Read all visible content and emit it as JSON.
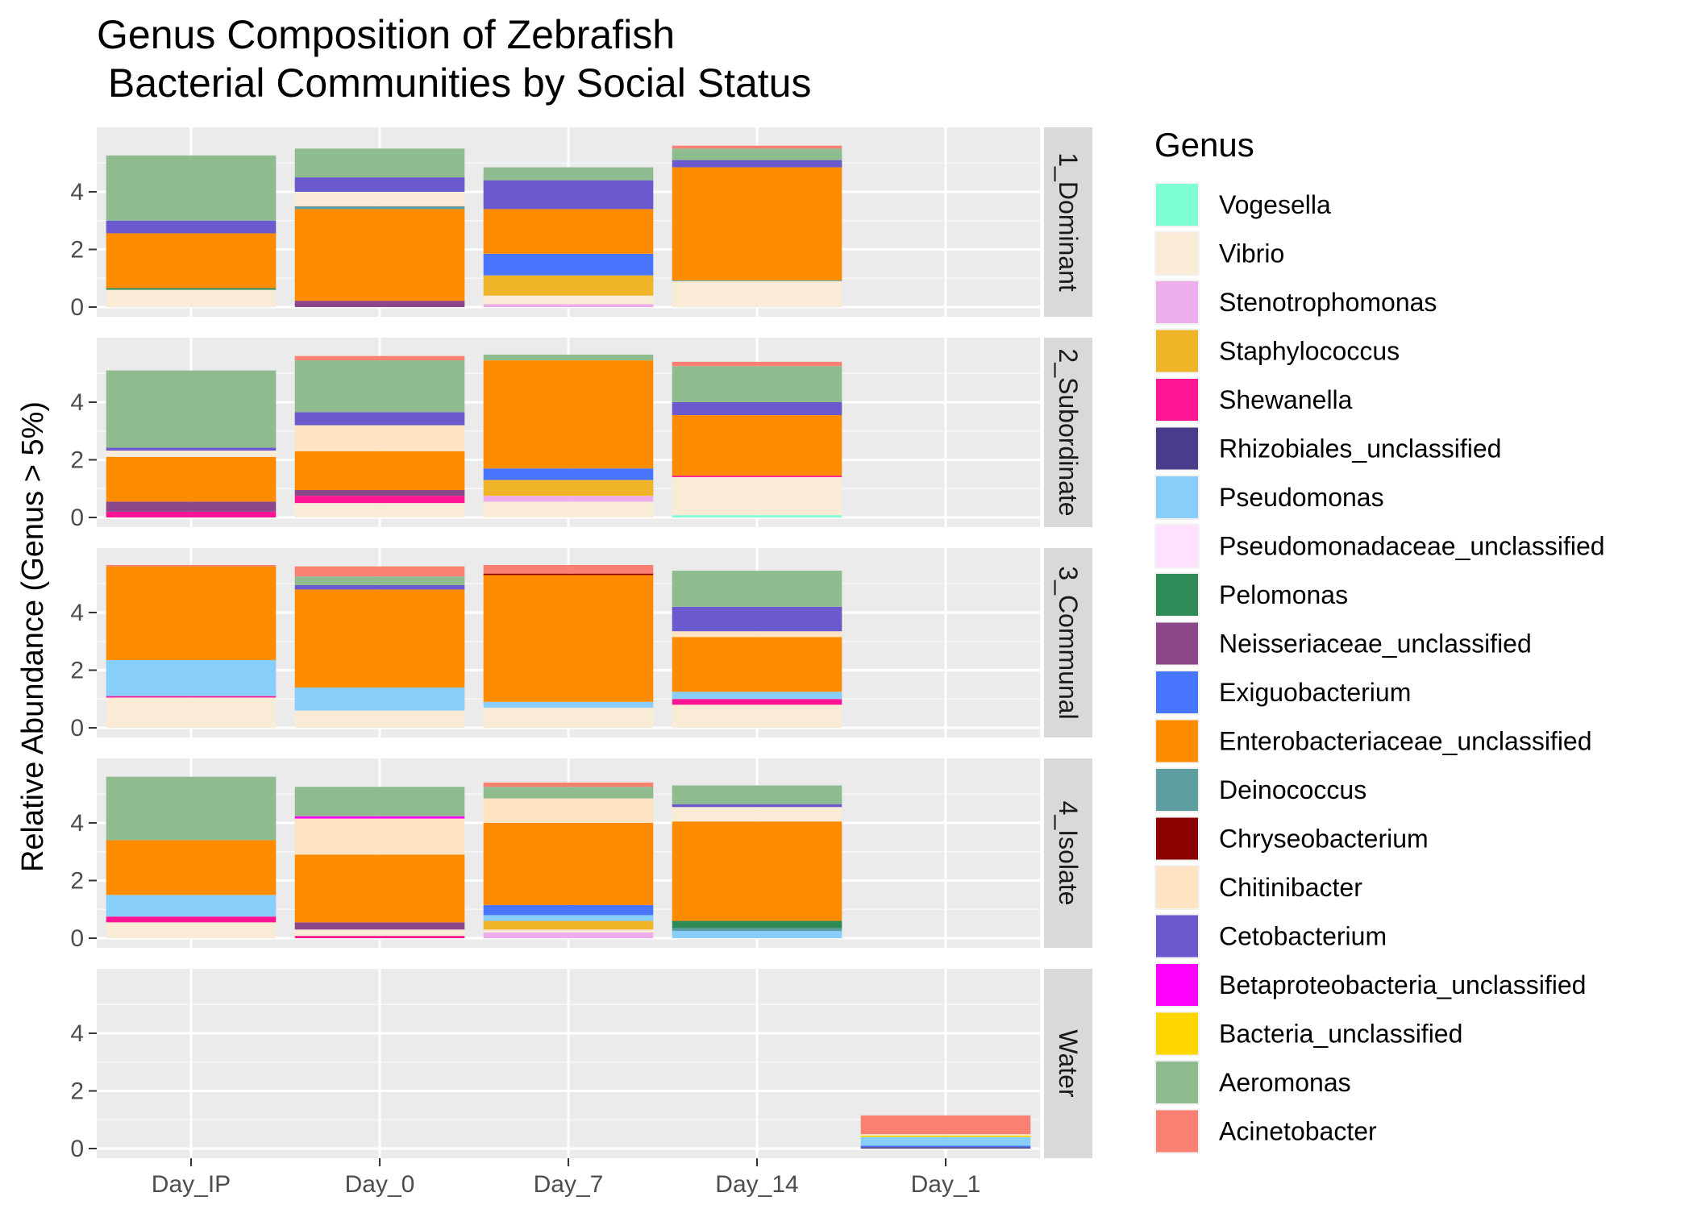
{
  "chart_data": {
    "type": "bar",
    "stacked": true,
    "faceted": true,
    "title_lines": [
      "Genus Composition of Zebrafish",
      " Bacterial Communities by Social Status"
    ],
    "xlabel": "",
    "ylabel": "Relative Abundance (Genus > 5%)",
    "ylim": [
      0,
      5.9
    ],
    "y_ticks": [
      0,
      2,
      4
    ],
    "categories": [
      "Day_IP",
      "Day_0",
      "Day_7",
      "Day_14",
      "Day_1"
    ],
    "facets": [
      "1_Dominant",
      "2_Subordinate",
      "3_Communal",
      "4_Isolate",
      "Water"
    ],
    "legend_title": "Genus",
    "legend_position": "right",
    "grid": true,
    "genera": [
      {
        "name": "Vogesella",
        "color": "#7FFFD4"
      },
      {
        "name": "Vibrio",
        "color": "#FAEBD7"
      },
      {
        "name": "Stenotrophomonas",
        "color": "#EEAEEE"
      },
      {
        "name": "Staphylococcus",
        "color": "#F0B428"
      },
      {
        "name": "Shewanella",
        "color": "#FF1493"
      },
      {
        "name": "Rhizobiales_unclassified",
        "color": "#483D8B"
      },
      {
        "name": "Pseudomonas",
        "color": "#87CEFA"
      },
      {
        "name": "Pseudomonadaceae_unclassified",
        "color": "#FFE1FF"
      },
      {
        "name": "Pelomonas",
        "color": "#2E8B57"
      },
      {
        "name": "Neisseriaceae_unclassified",
        "color": "#8B4789"
      },
      {
        "name": "Exiguobacterium",
        "color": "#4876FF"
      },
      {
        "name": "Enterobacteriaceae_unclassified",
        "color": "#FF8C00"
      },
      {
        "name": "Deinococcus",
        "color": "#5F9EA0"
      },
      {
        "name": "Chryseobacterium",
        "color": "#8B0000"
      },
      {
        "name": "Chitinibacter",
        "color": "#FFE4C4"
      },
      {
        "name": "Cetobacterium",
        "color": "#6A5ACD"
      },
      {
        "name": "Betaproteobacteria_unclassified",
        "color": "#FF00FF"
      },
      {
        "name": "Bacteria_unclassified",
        "color": "#FFD700"
      },
      {
        "name": "Aeromonas",
        "color": "#8FBC8F"
      },
      {
        "name": "Acinetobacter",
        "color": "#FA8072"
      }
    ],
    "stacks": [
      {
        "facet": "1_Dominant",
        "category": "Day_IP",
        "segments": [
          [
            "Vibrio",
            0.6
          ],
          [
            "Pelomonas",
            0.06
          ],
          [
            "Enterobacteriaceae_unclassified",
            1.9
          ],
          [
            "Cetobacterium",
            0.44
          ],
          [
            "Aeromonas",
            2.26
          ]
        ]
      },
      {
        "facet": "1_Dominant",
        "category": "Day_0",
        "segments": [
          [
            "Neisseriaceae_unclassified",
            0.22
          ],
          [
            "Enterobacteriaceae_unclassified",
            3.18
          ],
          [
            "Deinococcus",
            0.1
          ],
          [
            "Vibrio",
            0.5
          ],
          [
            "Cetobacterium",
            0.5
          ],
          [
            "Aeromonas",
            1.0
          ]
        ]
      },
      {
        "facet": "1_Dominant",
        "category": "Day_7",
        "segments": [
          [
            "Stenotrophomonas",
            0.1
          ],
          [
            "Vibrio",
            0.3
          ],
          [
            "Staphylococcus",
            0.7
          ],
          [
            "Exiguobacterium",
            0.75
          ],
          [
            "Enterobacteriaceae_unclassified",
            1.55
          ],
          [
            "Cetobacterium",
            1.0
          ],
          [
            "Aeromonas",
            0.45
          ]
        ]
      },
      {
        "facet": "1_Dominant",
        "category": "Day_14",
        "segments": [
          [
            "Vibrio",
            0.9
          ],
          [
            "Deinococcus",
            0.03
          ],
          [
            "Enterobacteriaceae_unclassified",
            3.92
          ],
          [
            "Cetobacterium",
            0.25
          ],
          [
            "Aeromonas",
            0.4
          ],
          [
            "Acinetobacter",
            0.1
          ]
        ]
      },
      {
        "facet": "2_Subordinate",
        "category": "Day_IP",
        "segments": [
          [
            "Shewanella",
            0.2
          ],
          [
            "Neisseriaceae_unclassified",
            0.35
          ],
          [
            "Enterobacteriaceae_unclassified",
            1.55
          ],
          [
            "Vibrio",
            0.22
          ],
          [
            "Cetobacterium",
            0.1
          ],
          [
            "Aeromonas",
            2.68
          ]
        ]
      },
      {
        "facet": "2_Subordinate",
        "category": "Day_0",
        "segments": [
          [
            "Vibrio",
            0.5
          ],
          [
            "Shewanella",
            0.25
          ],
          [
            "Neisseriaceae_unclassified",
            0.2
          ],
          [
            "Enterobacteriaceae_unclassified",
            1.35
          ],
          [
            "Chitinibacter",
            0.9
          ],
          [
            "Cetobacterium",
            0.45
          ],
          [
            "Aeromonas",
            1.8
          ],
          [
            "Acinetobacter",
            0.15
          ]
        ]
      },
      {
        "facet": "2_Subordinate",
        "category": "Day_7",
        "segments": [
          [
            "Vibrio",
            0.55
          ],
          [
            "Stenotrophomonas",
            0.2
          ],
          [
            "Staphylococcus",
            0.55
          ],
          [
            "Exiguobacterium",
            0.4
          ],
          [
            "Enterobacteriaceae_unclassified",
            3.75
          ],
          [
            "Aeromonas",
            0.2
          ]
        ]
      },
      {
        "facet": "2_Subordinate",
        "category": "Day_14",
        "segments": [
          [
            "Vogesella",
            0.08
          ],
          [
            "Vibrio",
            1.32
          ],
          [
            "Shewanella",
            0.05
          ],
          [
            "Enterobacteriaceae_unclassified",
            2.1
          ],
          [
            "Cetobacterium",
            0.45
          ],
          [
            "Aeromonas",
            1.25
          ],
          [
            "Acinetobacter",
            0.15
          ]
        ]
      },
      {
        "facet": "3_Communal",
        "category": "Day_IP",
        "segments": [
          [
            "Vibrio",
            1.05
          ],
          [
            "Shewanella",
            0.05
          ],
          [
            "Pseudomonas",
            1.25
          ],
          [
            "Enterobacteriaceae_unclassified",
            3.25
          ],
          [
            "Acinetobacter",
            0.05
          ]
        ]
      },
      {
        "facet": "3_Communal",
        "category": "Day_0",
        "segments": [
          [
            "Vibrio",
            0.6
          ],
          [
            "Pseudomonas",
            0.8
          ],
          [
            "Enterobacteriaceae_unclassified",
            3.4
          ],
          [
            "Cetobacterium",
            0.15
          ],
          [
            "Aeromonas",
            0.3
          ],
          [
            "Acinetobacter",
            0.35
          ]
        ]
      },
      {
        "facet": "3_Communal",
        "category": "Day_7",
        "segments": [
          [
            "Vibrio",
            0.7
          ],
          [
            "Pseudomonas",
            0.2
          ],
          [
            "Enterobacteriaceae_unclassified",
            4.4
          ],
          [
            "Chryseobacterium",
            0.05
          ],
          [
            "Acinetobacter",
            0.3
          ]
        ]
      },
      {
        "facet": "3_Communal",
        "category": "Day_14",
        "segments": [
          [
            "Vibrio",
            0.8
          ],
          [
            "Shewanella",
            0.2
          ],
          [
            "Pseudomonas",
            0.25
          ],
          [
            "Enterobacteriaceae_unclassified",
            1.9
          ],
          [
            "Chitinibacter",
            0.2
          ],
          [
            "Cetobacterium",
            0.85
          ],
          [
            "Aeromonas",
            1.25
          ]
        ]
      },
      {
        "facet": "4_Isolate",
        "category": "Day_IP",
        "segments": [
          [
            "Vibrio",
            0.55
          ],
          [
            "Shewanella",
            0.2
          ],
          [
            "Pseudomonas",
            0.75
          ],
          [
            "Enterobacteriaceae_unclassified",
            1.9
          ],
          [
            "Aeromonas",
            2.2
          ]
        ]
      },
      {
        "facet": "4_Isolate",
        "category": "Day_0",
        "segments": [
          [
            "Shewanella",
            0.08
          ],
          [
            "Vibrio",
            0.22
          ],
          [
            "Neisseriaceae_unclassified",
            0.25
          ],
          [
            "Enterobacteriaceae_unclassified",
            2.35
          ],
          [
            "Chitinibacter",
            1.25
          ],
          [
            "Betaproteobacteria_unclassified",
            0.08
          ],
          [
            "Aeromonas",
            1.02
          ]
        ]
      },
      {
        "facet": "4_Isolate",
        "category": "Day_7",
        "segments": [
          [
            "Stenotrophomonas",
            0.2
          ],
          [
            "Vibrio",
            0.1
          ],
          [
            "Staphylococcus",
            0.3
          ],
          [
            "Pseudomonas",
            0.2
          ],
          [
            "Exiguobacterium",
            0.35
          ],
          [
            "Enterobacteriaceae_unclassified",
            2.85
          ],
          [
            "Chitinibacter",
            0.85
          ],
          [
            "Aeromonas",
            0.4
          ],
          [
            "Acinetobacter",
            0.15
          ]
        ]
      },
      {
        "facet": "4_Isolate",
        "category": "Day_14",
        "segments": [
          [
            "Pseudomonas",
            0.25
          ],
          [
            "Deinococcus",
            0.1
          ],
          [
            "Pelomonas",
            0.25
          ],
          [
            "Enterobacteriaceae_unclassified",
            3.45
          ],
          [
            "Vibrio",
            0.5
          ],
          [
            "Cetobacterium",
            0.1
          ],
          [
            "Aeromonas",
            0.65
          ]
        ]
      },
      {
        "facet": "Water",
        "category": "Day_1",
        "segments": [
          [
            "Rhizobiales_unclassified",
            0.05
          ],
          [
            "Exiguobacterium",
            0.05
          ],
          [
            "Pseudomonas",
            0.3
          ],
          [
            "Bacteria_unclassified",
            0.05
          ],
          [
            "Chitinibacter",
            0.05
          ],
          [
            "Acinetobacter",
            0.65
          ]
        ]
      }
    ]
  }
}
